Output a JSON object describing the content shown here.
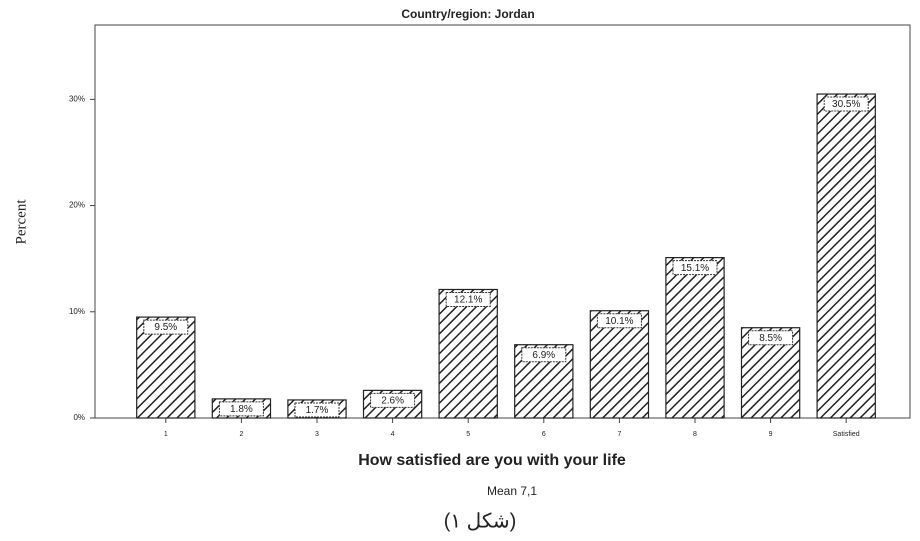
{
  "chart_data": {
    "type": "bar",
    "title": "Country/region: Jordan",
    "y_label": "Percent",
    "x_label": "How satisfied are you with your life",
    "subtitle": "Mean 7,1",
    "caption": "(شكل ١)",
    "categories": [
      "1",
      "2",
      "3",
      "4",
      "5",
      "6",
      "7",
      "8",
      "9",
      "Satisfied"
    ],
    "values": [
      9.5,
      1.8,
      1.7,
      2.6,
      12.1,
      6.9,
      10.1,
      15.1,
      8.5,
      30.5
    ],
    "value_labels": [
      "9.5%",
      "1.8%",
      "1.7%",
      "2.6%",
      "12.1%",
      "6.9%",
      "10.1%",
      "15.1%",
      "8.5%",
      "30.5%"
    ],
    "color": "#222222",
    "ylim": [
      0,
      37
    ],
    "yticks": [
      {
        "value": 0,
        "label": "0%"
      },
      {
        "value": 10,
        "label": "10%"
      },
      {
        "value": 20,
        "label": "20%"
      },
      {
        "value": 30,
        "label": "30%"
      }
    ],
    "grid": false
  }
}
